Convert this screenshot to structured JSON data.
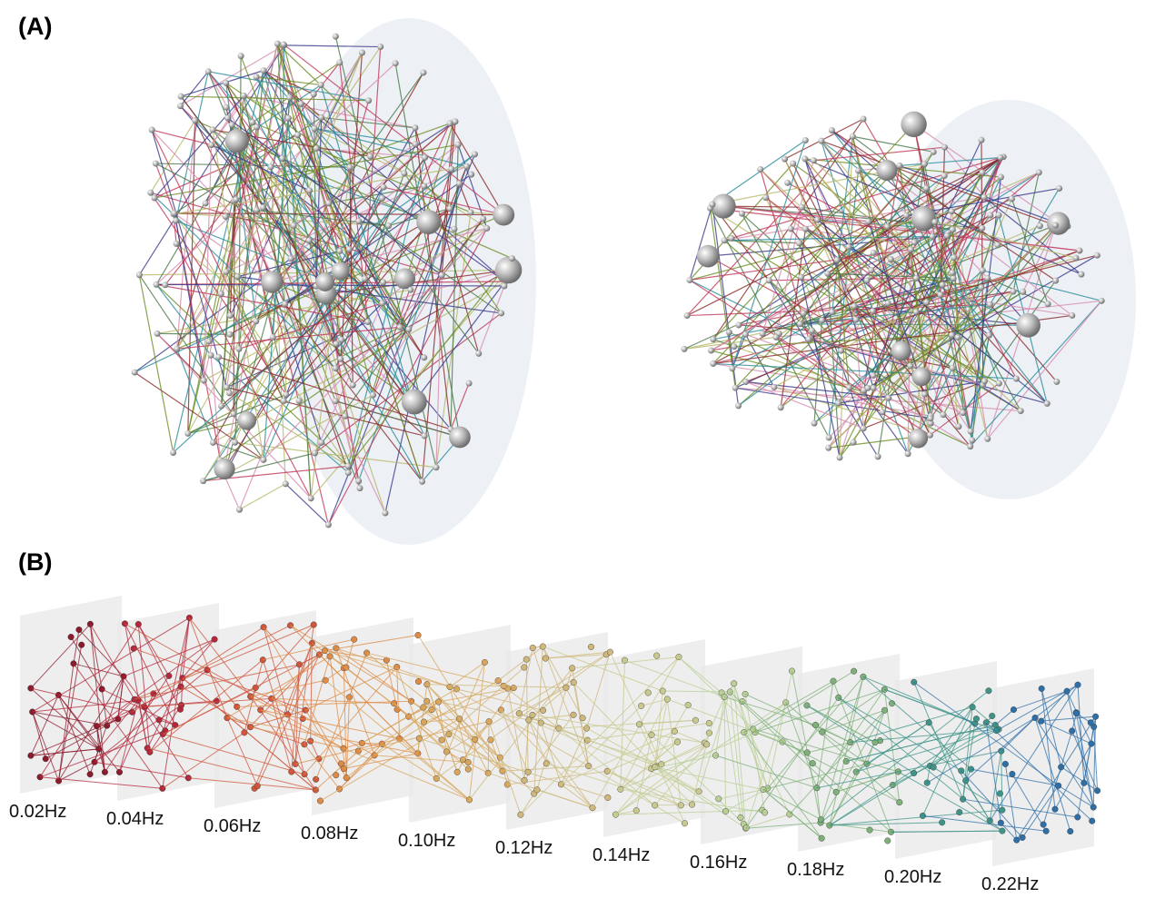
{
  "panels": {
    "a": {
      "label": "(A)"
    },
    "b": {
      "label": "(B)",
      "frequencies": [
        "0.02Hz",
        "0.04Hz",
        "0.06Hz",
        "0.08Hz",
        "0.10Hz",
        "0.12Hz",
        "0.14Hz",
        "0.16Hz",
        "0.18Hz",
        "0.20Hz",
        "0.22Hz"
      ]
    }
  }
}
